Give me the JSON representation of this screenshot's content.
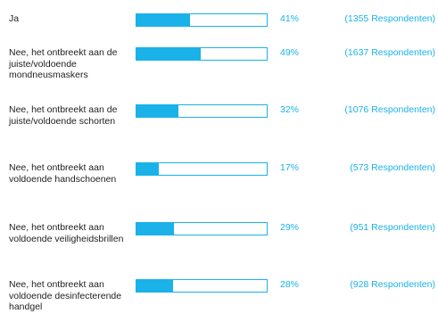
{
  "survey": {
    "rows": [
      {
        "label": "Ja",
        "percent_label": "41%",
        "fraction": 0.41,
        "respondents": "(1355 Respondenten)"
      },
      {
        "label": "Nee, het ontbreekt aan de juiste/voldoende mondneusmaskers",
        "percent_label": "49%",
        "fraction": 0.49,
        "respondents": "(1637 Respondenten)"
      },
      {
        "label": "Nee, het ontbreekt aan de juiste/voldoende schorten",
        "percent_label": "32%",
        "fraction": 0.32,
        "respondents": "(1076 Respondenten)"
      },
      {
        "label": "Nee, het ontbreekt aan voldoende handschoenen",
        "percent_label": "17%",
        "fraction": 0.17,
        "respondents": "(573 Respondenten)"
      },
      {
        "label": "Nee, het ontbreekt aan voldoende veiligheidsbrillen",
        "percent_label": "29%",
        "fraction": 0.29,
        "respondents": "(951 Respondenten)"
      },
      {
        "label": "Nee, het ontbreekt aan voldoende desinfecterende handgel",
        "percent_label": "28%",
        "fraction": 0.28,
        "respondents": "(928 Respondenten)"
      }
    ]
  },
  "colors": {
    "accent": "#1ab2e8",
    "text": "#222222"
  }
}
